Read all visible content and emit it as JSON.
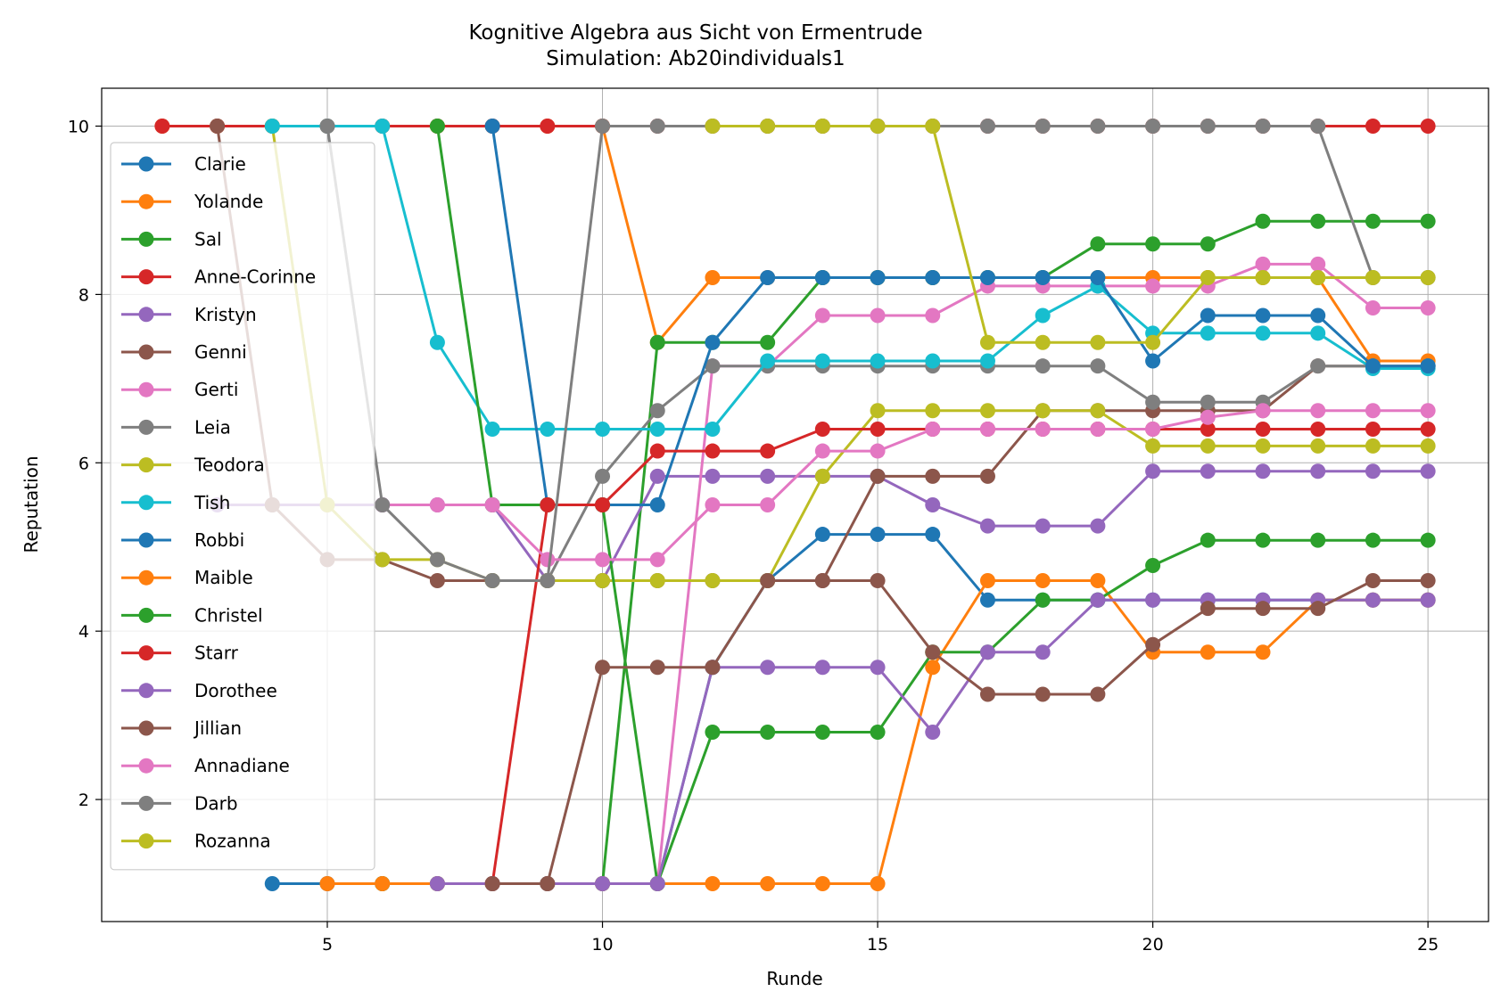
{
  "chart_data": {
    "type": "line",
    "title": "Kognitive Algebra aus Sicht von Ermentrude",
    "subtitle": "Simulation: Ab20individuals1",
    "xlabel": "Runde",
    "ylabel": "Reputation",
    "xlim": [
      0.9,
      26.1
    ],
    "ylim": [
      0.55,
      10.45
    ],
    "xticks": [
      5,
      10,
      15,
      20,
      25
    ],
    "yticks": [
      2,
      4,
      6,
      8,
      10
    ],
    "grid": true,
    "legend_position": "upper-left",
    "series": [
      {
        "name": "Clarie",
        "color": "#1f77b4",
        "x": [
          4,
          5,
          6,
          7,
          8,
          9,
          10,
          11,
          12,
          13,
          14,
          15,
          16,
          17,
          18,
          19,
          20,
          21,
          22,
          23,
          24,
          25
        ],
        "values": [
          1,
          1,
          1,
          1,
          1,
          1,
          1,
          1,
          3.57,
          4.6,
          5.15,
          5.15,
          5.15,
          4.37,
          4.37,
          4.37,
          4.37,
          4.37,
          4.37,
          4.37,
          4.37,
          4.37
        ]
      },
      {
        "name": "Yolande",
        "color": "#ff7f0e",
        "x": [
          2,
          3,
          4,
          5,
          6,
          7,
          8,
          9,
          10,
          11,
          12,
          13,
          14,
          15,
          16,
          17,
          18,
          19,
          20,
          21,
          22,
          23,
          24,
          25
        ],
        "values": [
          10,
          10,
          10,
          10,
          10,
          10,
          10,
          10,
          10,
          7.43,
          8.2,
          8.2,
          8.2,
          8.2,
          8.2,
          8.2,
          8.2,
          8.2,
          8.2,
          8.2,
          8.2,
          8.2,
          7.21,
          7.21
        ]
      },
      {
        "name": "Sal",
        "color": "#2ca02c",
        "x": [
          6,
          7,
          8,
          9,
          10,
          11,
          12,
          13,
          14,
          15,
          16,
          17,
          18,
          19,
          20,
          21,
          22,
          23,
          24,
          25
        ],
        "values": [
          1,
          1,
          1,
          1,
          1,
          7.43,
          7.43,
          7.43,
          8.2,
          8.2,
          8.2,
          8.2,
          8.2,
          8.6,
          8.6,
          8.6,
          8.87,
          8.87,
          8.87,
          8.87
        ]
      },
      {
        "name": "Anne-Corinne",
        "color": "#d62728",
        "x": [
          2,
          3,
          4,
          5,
          6,
          7,
          8,
          9,
          10,
          11,
          12,
          13,
          14,
          15,
          16,
          17,
          18,
          19,
          20,
          21,
          22,
          23,
          24,
          25
        ],
        "values": [
          10,
          10,
          10,
          10,
          10,
          10,
          10,
          10,
          10,
          10,
          10,
          10,
          10,
          10,
          10,
          10,
          10,
          10,
          10,
          10,
          10,
          10,
          10,
          10
        ]
      },
      {
        "name": "Kristyn",
        "color": "#9467bd",
        "x": [
          3,
          4,
          5,
          6,
          7,
          8,
          9,
          10,
          11,
          12,
          13,
          14,
          15,
          16,
          17,
          18,
          19,
          20,
          21,
          22,
          23,
          24,
          25
        ],
        "values": [
          5.5,
          5.5,
          5.5,
          5.5,
          5.5,
          5.5,
          4.6,
          4.6,
          5.84,
          5.84,
          5.84,
          5.84,
          5.84,
          5.5,
          5.25,
          5.25,
          5.25,
          5.9,
          5.9,
          5.9,
          5.9,
          5.9,
          5.9
        ]
      },
      {
        "name": "Genni",
        "color": "#8c564b",
        "x": [
          3,
          4,
          5,
          6,
          7,
          8,
          9,
          10,
          11,
          12,
          13,
          14,
          15,
          16,
          17,
          18,
          19,
          20,
          21,
          22,
          23,
          24,
          25
        ],
        "values": [
          10,
          5.5,
          4.85,
          4.85,
          4.6,
          4.6,
          4.6,
          4.6,
          4.6,
          4.6,
          4.6,
          4.6,
          5.84,
          5.84,
          5.84,
          6.62,
          6.62,
          6.62,
          6.62,
          6.62,
          7.15,
          7.15,
          7.15
        ]
      },
      {
        "name": "Gerti",
        "color": "#e377c2",
        "x": [
          11,
          12,
          13,
          14,
          15,
          16,
          17,
          18,
          19,
          20,
          21,
          22,
          23,
          24,
          25
        ],
        "values": [
          1,
          7.15,
          7.15,
          7.75,
          7.75,
          7.75,
          8.1,
          8.1,
          8.1,
          8.1,
          8.1,
          8.36,
          8.36,
          7.84,
          7.84
        ]
      },
      {
        "name": "Leia",
        "color": "#7f7f7f",
        "x": [
          8,
          9,
          10,
          11,
          12,
          13,
          14,
          15,
          16,
          17,
          18,
          19,
          20,
          21,
          22,
          23,
          24,
          25
        ],
        "values": [
          4.6,
          4.6,
          5.84,
          6.62,
          7.15,
          7.15,
          7.15,
          7.15,
          7.15,
          7.15,
          7.15,
          7.15,
          6.72,
          6.72,
          6.72,
          7.15,
          7.15,
          7.15
        ]
      },
      {
        "name": "Teodora",
        "color": "#bcbd22",
        "x": [
          4,
          5,
          6,
          7,
          8,
          9,
          10,
          11,
          12,
          13,
          14,
          15,
          16,
          17,
          18,
          19,
          20,
          21,
          22,
          23,
          24,
          25
        ],
        "values": [
          10,
          5.5,
          4.85,
          4.85,
          4.6,
          4.6,
          4.6,
          4.6,
          4.6,
          4.6,
          5.84,
          6.62,
          6.62,
          6.62,
          6.62,
          6.62,
          6.2,
          6.2,
          6.2,
          6.2,
          6.2,
          6.2
        ]
      },
      {
        "name": "Tish",
        "color": "#17becf",
        "x": [
          4,
          5,
          6,
          7,
          8,
          9,
          10,
          11,
          12,
          13,
          14,
          15,
          16,
          17,
          18,
          19,
          20,
          21,
          22,
          23,
          24,
          25
        ],
        "values": [
          10,
          10,
          10,
          7.43,
          6.4,
          6.4,
          6.4,
          6.4,
          6.4,
          7.21,
          7.21,
          7.21,
          7.21,
          7.21,
          7.75,
          8.1,
          7.54,
          7.54,
          7.54,
          7.54,
          7.12,
          7.12
        ]
      },
      {
        "name": "Robbi",
        "color": "#1f77b4",
        "x": [
          8,
          9,
          10,
          11,
          12,
          13,
          14,
          15,
          16,
          17,
          18,
          19,
          20,
          21,
          22,
          23,
          24,
          25
        ],
        "values": [
          10,
          5.5,
          5.5,
          5.5,
          7.43,
          8.2,
          8.2,
          8.2,
          8.2,
          8.2,
          8.2,
          8.2,
          7.21,
          7.75,
          7.75,
          7.75,
          7.15,
          7.15
        ]
      },
      {
        "name": "Maible",
        "color": "#ff7f0e",
        "x": [
          5,
          6,
          7,
          8,
          9,
          10,
          11,
          12,
          13,
          14,
          15,
          16,
          17,
          18,
          19,
          20,
          21,
          22,
          23,
          24,
          25
        ],
        "values": [
          1,
          1,
          1,
          1,
          1,
          1,
          1,
          1,
          1,
          1,
          1,
          3.57,
          4.6,
          4.6,
          4.6,
          3.75,
          3.75,
          3.75,
          4.37,
          4.37,
          4.37
        ]
      },
      {
        "name": "Christel",
        "color": "#2ca02c",
        "x": [
          7,
          8,
          9,
          10,
          11,
          12,
          13,
          14,
          15,
          16,
          17,
          18,
          19,
          20,
          21,
          22,
          23,
          24,
          25
        ],
        "values": [
          10,
          5.5,
          5.5,
          5.5,
          1,
          2.8,
          2.8,
          2.8,
          2.8,
          3.75,
          3.75,
          4.37,
          4.37,
          4.78,
          5.08,
          5.08,
          5.08,
          5.08,
          5.08
        ]
      },
      {
        "name": "Starr",
        "color": "#d62728",
        "x": [
          8,
          9,
          10,
          11,
          12,
          13,
          14,
          15,
          16,
          17,
          18,
          19,
          20,
          21,
          22,
          23,
          24,
          25
        ],
        "values": [
          1,
          5.5,
          5.5,
          6.14,
          6.14,
          6.14,
          6.4,
          6.4,
          6.4,
          6.4,
          6.4,
          6.4,
          6.4,
          6.4,
          6.4,
          6.4,
          6.4,
          6.4
        ]
      },
      {
        "name": "Dorothee",
        "color": "#9467bd",
        "x": [
          7,
          8,
          9,
          10,
          11,
          12,
          13,
          14,
          15,
          16,
          17,
          18,
          19,
          20,
          21,
          22,
          23,
          24,
          25
        ],
        "values": [
          1,
          1,
          1,
          1,
          1,
          3.57,
          3.57,
          3.57,
          3.57,
          2.8,
          3.75,
          3.75,
          4.37,
          4.37,
          4.37,
          4.37,
          4.37,
          4.37,
          4.37
        ]
      },
      {
        "name": "Jillian",
        "color": "#8c564b",
        "x": [
          8,
          9,
          10,
          11,
          12,
          13,
          14,
          15,
          16,
          17,
          18,
          19,
          20,
          21,
          22,
          23,
          24,
          25
        ],
        "values": [
          1,
          1,
          3.57,
          3.57,
          3.57,
          4.6,
          4.6,
          4.6,
          3.75,
          3.25,
          3.25,
          3.25,
          3.84,
          4.27,
          4.27,
          4.27,
          4.6,
          4.6
        ]
      },
      {
        "name": "Annadiane",
        "color": "#e377c2",
        "x": [
          6,
          7,
          8,
          9,
          10,
          11,
          12,
          13,
          14,
          15,
          16,
          17,
          18,
          19,
          20,
          21,
          22,
          23,
          24,
          25
        ],
        "values": [
          5.5,
          5.5,
          5.5,
          4.85,
          4.85,
          4.85,
          5.5,
          5.5,
          6.14,
          6.14,
          6.4,
          6.4,
          6.4,
          6.4,
          6.4,
          6.54,
          6.62,
          6.62,
          6.62,
          6.62
        ]
      },
      {
        "name": "Darb",
        "color": "#7f7f7f",
        "x": [
          5,
          6,
          7,
          8,
          9,
          10,
          11,
          12,
          13,
          14,
          15,
          16,
          17,
          18,
          19,
          20,
          21,
          22,
          23,
          24,
          25
        ],
        "values": [
          10,
          5.5,
          4.85,
          4.6,
          4.6,
          10,
          10,
          10,
          10,
          10,
          10,
          10,
          10,
          10,
          10,
          10,
          10,
          10,
          10,
          8.2,
          8.2
        ]
      },
      {
        "name": "Rozanna",
        "color": "#bcbd22",
        "x": [
          12,
          13,
          14,
          15,
          16,
          17,
          18,
          19,
          20,
          21,
          22,
          23,
          24,
          25
        ],
        "values": [
          10,
          10,
          10,
          10,
          10,
          7.43,
          7.43,
          7.43,
          7.43,
          8.2,
          8.2,
          8.2,
          8.2,
          8.2
        ]
      }
    ]
  }
}
